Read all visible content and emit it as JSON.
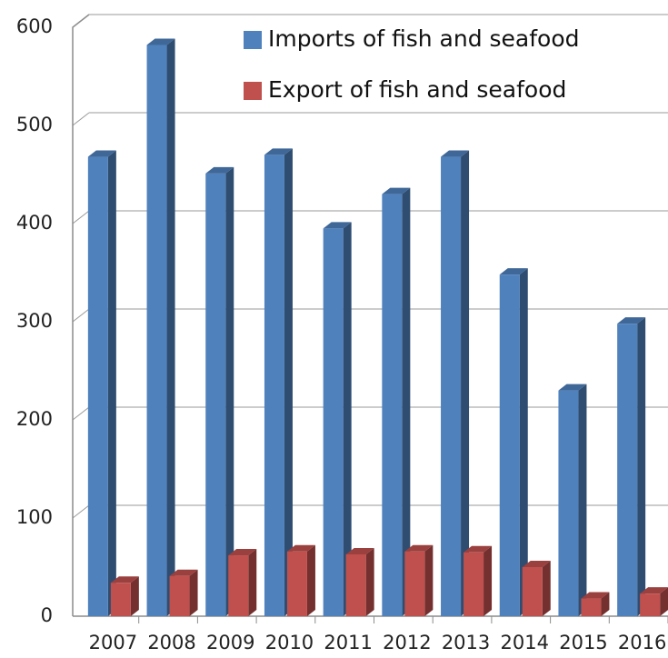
{
  "chart_data": {
    "type": "bar",
    "categories": [
      "2007",
      "2008",
      "2009",
      "2010",
      "2011",
      "2012",
      "2013",
      "2014",
      "2015",
      "2016"
    ],
    "series": [
      {
        "name": "Imports of fish and seafood",
        "color": "#4F81BD",
        "values": [
          468,
          582,
          451,
          470,
          395,
          430,
          468,
          348,
          230,
          298
        ]
      },
      {
        "name": "Export of fish and seafood",
        "color": "#C0504D",
        "values": [
          34,
          41,
          62,
          66,
          63,
          66,
          65,
          50,
          18,
          23
        ]
      }
    ],
    "ylim": [
      0,
      600
    ],
    "yticks": [
      "0",
      "100",
      "200",
      "300",
      "400",
      "500",
      "600"
    ],
    "legend_position": "top-right",
    "grid": true,
    "style": "3d-column"
  }
}
